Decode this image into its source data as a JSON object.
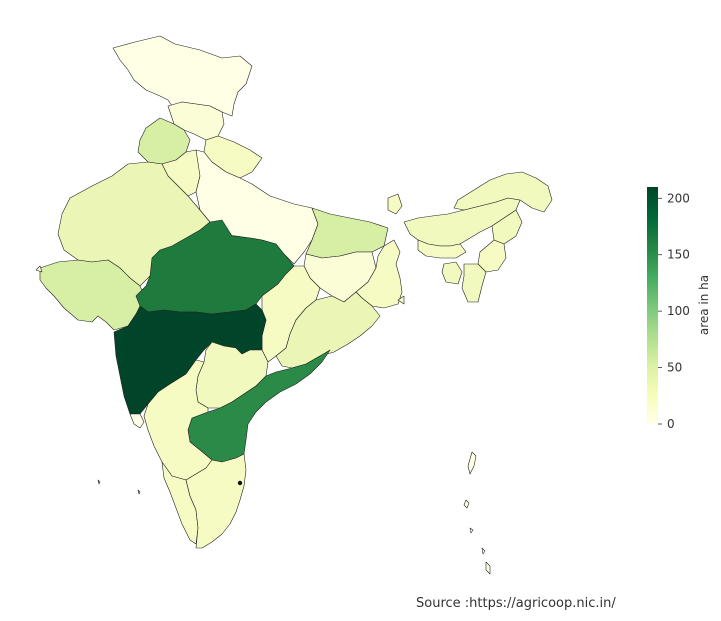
{
  "map": {
    "colorbar": {
      "label": "area in ha",
      "min": 0,
      "max": 210,
      "ticks": [
        0,
        50,
        100,
        150,
        200
      ],
      "colors": [
        "#ffffe5",
        "#f7fcb9",
        "#d9f0a3",
        "#addd8e",
        "#78c679",
        "#41ab5d",
        "#238443",
        "#006837",
        "#004529"
      ]
    },
    "source": "Source :https://agricoop.nic.in/"
  }
}
